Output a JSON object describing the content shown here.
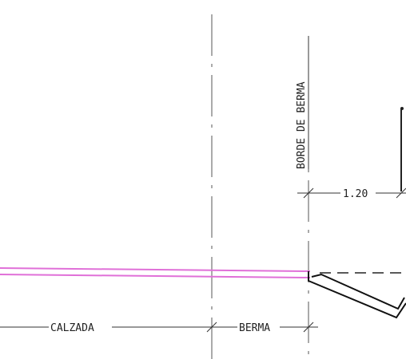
{
  "labels": {
    "curb": "BORDE DE BERMA",
    "width_dim": "1.20",
    "carriageway": "CALZADA",
    "shoulder": "BERMA"
  },
  "colors": {
    "line": "#2a2a2a",
    "road_surface": "#e070d8",
    "background": "#ffffff"
  }
}
